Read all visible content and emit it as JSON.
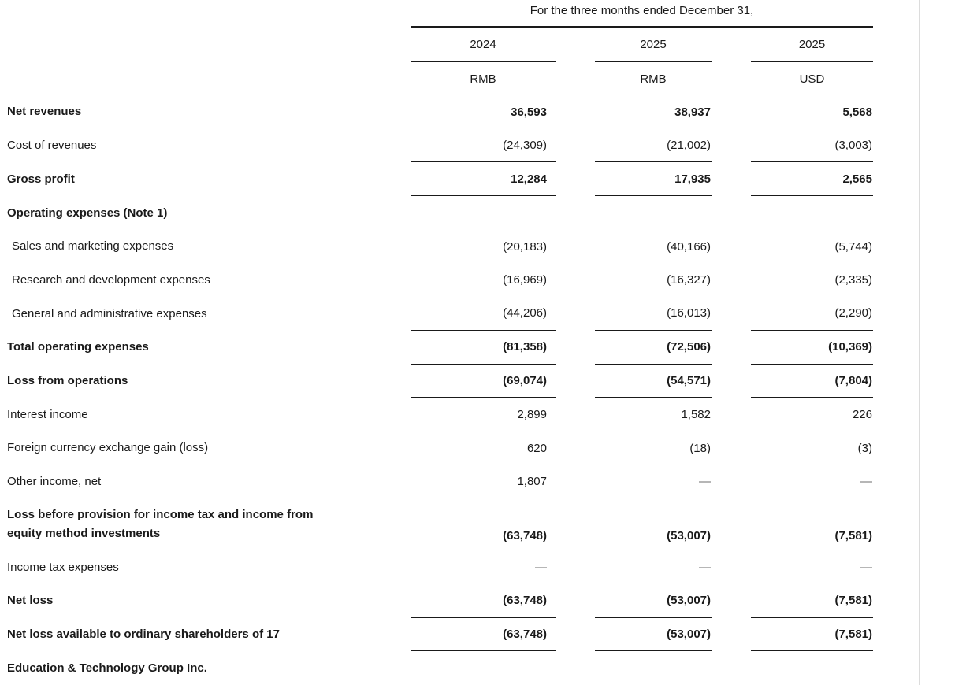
{
  "table": {
    "title": "For the three months ended December 31,",
    "columns": [
      {
        "year": "2024",
        "currency": "RMB"
      },
      {
        "year": "2025",
        "currency": "RMB"
      },
      {
        "year": "2025",
        "currency": "USD"
      }
    ],
    "rows": [
      {
        "label": "Net revenues",
        "values": [
          "36,593",
          "38,937",
          "5,568"
        ]
      },
      {
        "label": "Cost of revenues",
        "values": [
          "(24,309)",
          "(21,002)",
          "(3,003)"
        ]
      },
      {
        "label": "Gross profit",
        "values": [
          "12,284",
          "17,935",
          "2,565"
        ]
      },
      {
        "label": "Operating expenses (Note 1)",
        "values": [
          "",
          "",
          ""
        ]
      },
      {
        "label": "Sales and marketing expenses",
        "values": [
          "(20,183)",
          "(40,166)",
          "(5,744)"
        ]
      },
      {
        "label": "Research and development expenses",
        "values": [
          "(16,969)",
          "(16,327)",
          "(2,335)"
        ]
      },
      {
        "label": "General and administrative expenses",
        "values": [
          "(44,206)",
          "(16,013)",
          "(2,290)"
        ]
      },
      {
        "label": "Total operating expenses",
        "values": [
          "(81,358)",
          "(72,506)",
          "(10,369)"
        ]
      },
      {
        "label": "Loss from operations",
        "values": [
          "(69,074)",
          "(54,571)",
          "(7,804)"
        ]
      },
      {
        "label": "Interest income",
        "values": [
          "2,899",
          "1,582",
          "226"
        ]
      },
      {
        "label": "Foreign currency exchange gain (loss)",
        "values": [
          "620",
          "(18)",
          "(3)"
        ]
      },
      {
        "label": "Other income, net",
        "values": [
          "1,807",
          "—",
          "—"
        ]
      },
      {
        "label": "Loss before provision for income tax and income from equity method investments",
        "values": [
          "(63,748)",
          "(53,007)",
          "(7,581)"
        ]
      },
      {
        "label": "Income tax expenses",
        "values": [
          "—",
          "—",
          "—"
        ]
      },
      {
        "label": "Net loss",
        "values": [
          "(63,748)",
          "(53,007)",
          "(7,581)"
        ]
      },
      {
        "label": "Net loss available to ordinary shareholders of 17",
        "values": [
          "(63,748)",
          "(53,007)",
          "(7,581)"
        ]
      },
      {
        "label": "Education & Technology Group Inc.",
        "values": [
          "",
          "",
          ""
        ]
      }
    ]
  }
}
